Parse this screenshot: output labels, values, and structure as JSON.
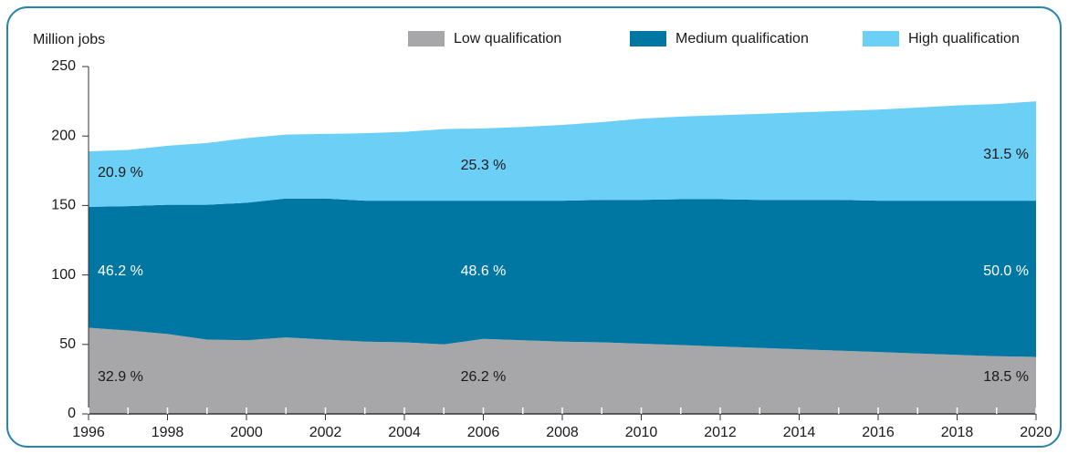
{
  "chart_data": {
    "type": "stacked_area",
    "y_label": "Million jobs",
    "x": [
      1996,
      1997,
      1998,
      1999,
      2000,
      2001,
      2002,
      2003,
      2004,
      2005,
      2006,
      2007,
      2008,
      2009,
      2010,
      2011,
      2012,
      2013,
      2014,
      2015,
      2016,
      2017,
      2018,
      2019,
      2020
    ],
    "series": [
      {
        "name": "Low qualification",
        "color": "#a7a6a9",
        "values": [
          62,
          60,
          57.5,
          53.5,
          53,
          55,
          53.5,
          52,
          51.5,
          50,
          54,
          53,
          52,
          51.5,
          50.5,
          49.5,
          48.5,
          47.5,
          46.5,
          45.5,
          44.5,
          43.5,
          42.5,
          41.5,
          41
        ]
      },
      {
        "name": "Medium qualification",
        "color": "#0077a3",
        "values": [
          87,
          89.5,
          93,
          97,
          99,
          100,
          101.5,
          101.5,
          102,
          103.5,
          99.5,
          100.5,
          101.5,
          102.5,
          103.5,
          105,
          106,
          106.5,
          107.5,
          108.5,
          109,
          110,
          111,
          112,
          112.5
        ]
      },
      {
        "name": "High qualification",
        "color": "#6ccff6",
        "values": [
          40,
          40.5,
          42.5,
          44.5,
          46.5,
          46,
          46.5,
          48.5,
          49.5,
          51.5,
          52,
          53,
          54.5,
          56,
          58.5,
          59.5,
          60.5,
          62,
          63,
          64,
          65.5,
          67,
          68.5,
          69.5,
          71.5
        ]
      }
    ],
    "annotations": [
      {
        "text": "32.9 %",
        "x": 1996,
        "series": 0
      },
      {
        "text": "26.2 %",
        "x": 2006,
        "series": 0
      },
      {
        "text": "18.5 %",
        "x": 2020,
        "series": 0
      },
      {
        "text": "46.2 %",
        "x": 1996,
        "series": 1
      },
      {
        "text": "48.6 %",
        "x": 2006,
        "series": 1
      },
      {
        "text": "50.0 %",
        "x": 2020,
        "series": 1
      },
      {
        "text": "20.9 %",
        "x": 1996,
        "series": 2
      },
      {
        "text": "25.3 %",
        "x": 2006,
        "series": 2
      },
      {
        "text": "31.5 %",
        "x": 2020,
        "series": 2
      }
    ],
    "xlim": [
      1996,
      2020
    ],
    "xticks": [
      1996,
      1998,
      2000,
      2002,
      2004,
      2006,
      2008,
      2010,
      2012,
      2014,
      2016,
      2018,
      2020
    ],
    "ylim": [
      0,
      250
    ],
    "yticks": [
      0,
      50,
      100,
      150,
      200,
      250
    ],
    "legend": "top"
  }
}
